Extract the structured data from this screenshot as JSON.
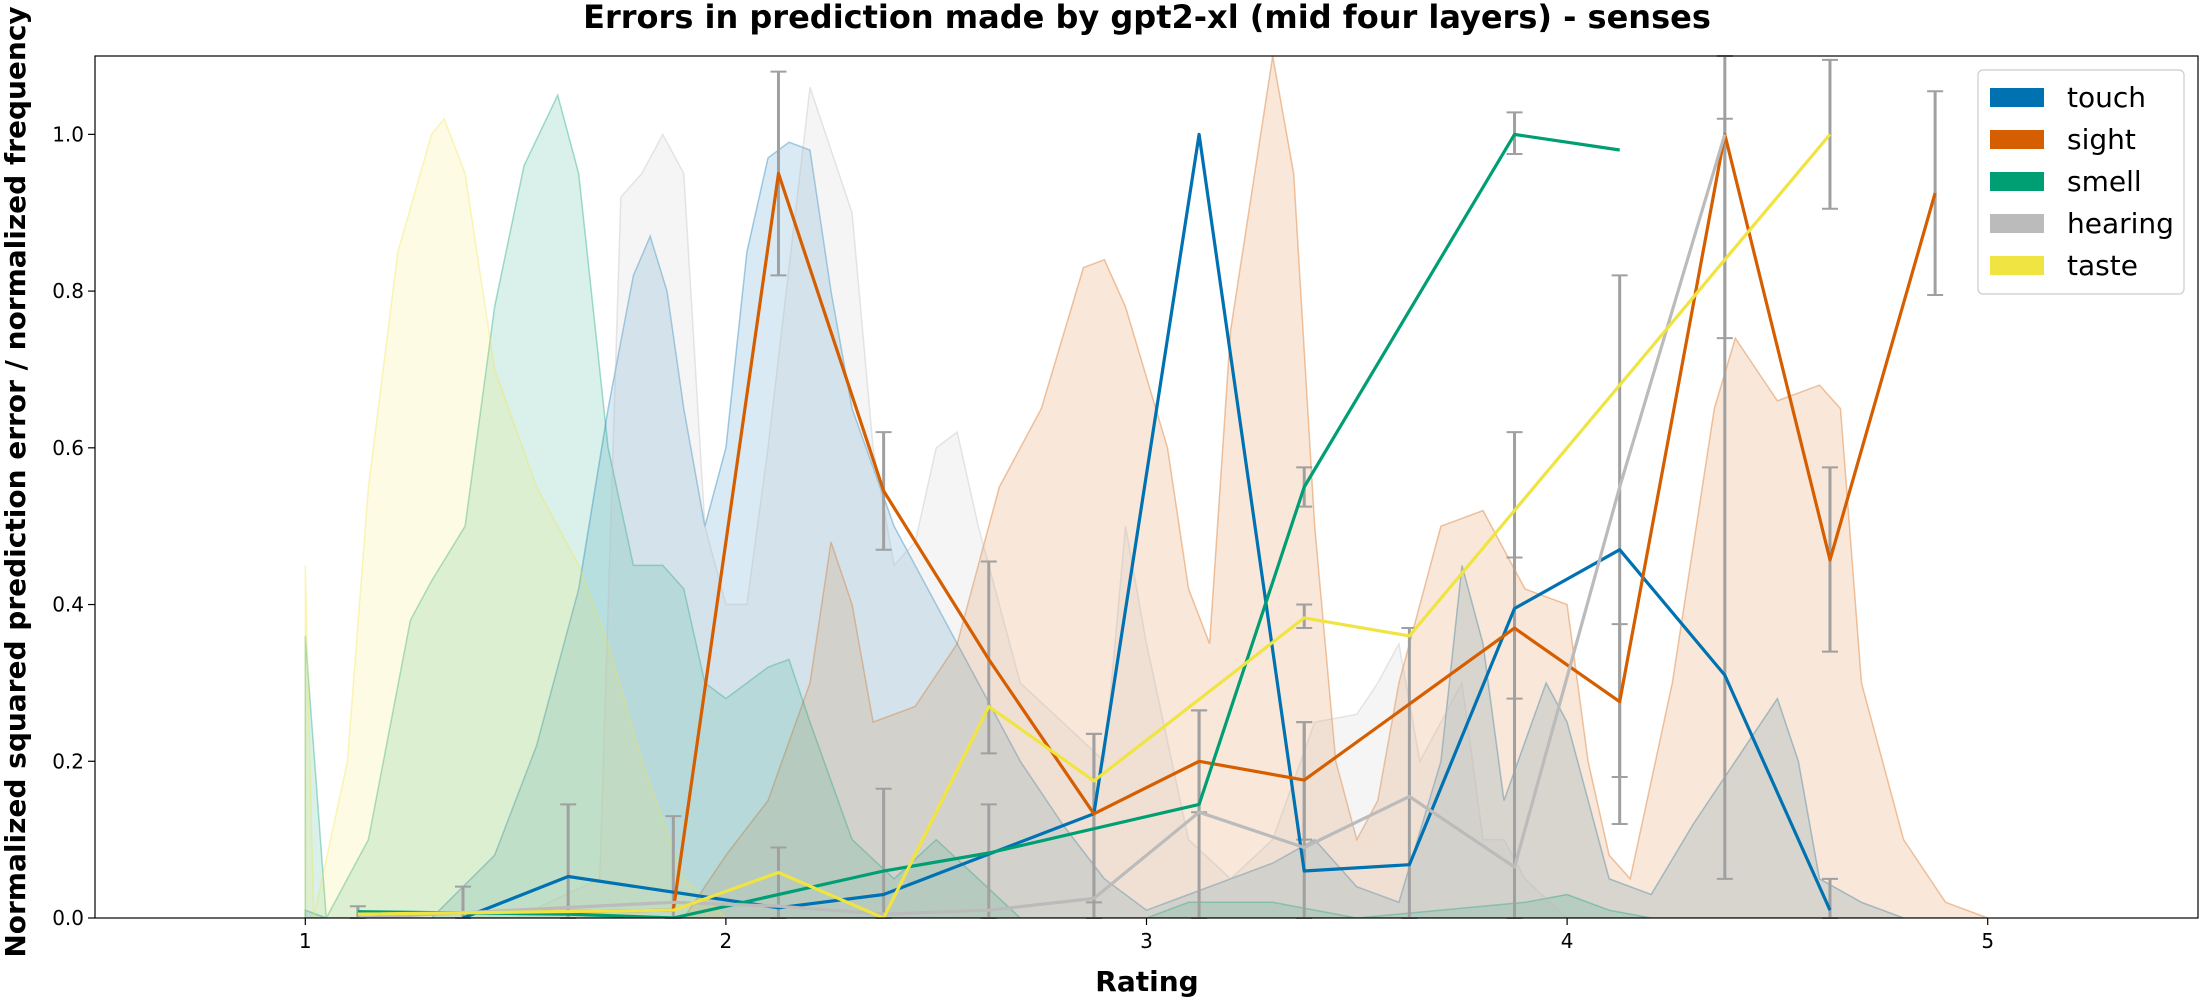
{
  "chart_data": {
    "type": "line",
    "title": "Errors in prediction made by gpt2-xl (mid four layers) - senses",
    "xlabel": "Rating",
    "ylabel": "Normalized squared prediction error / normalized frequency",
    "xlim": [
      0.5,
      5.5
    ],
    "ylim": [
      0,
      1.1
    ],
    "xticks": [
      1,
      2,
      3,
      4,
      5
    ],
    "yticks": [
      0.0,
      0.2,
      0.4,
      0.6,
      0.8,
      1.0
    ],
    "legend_position": "top-right",
    "grid": false,
    "series": [
      {
        "name": "touch",
        "color": "#0072B2",
        "line": [
          [
            1.375,
            0.0
          ],
          [
            1.625,
            0.053
          ],
          [
            2.125,
            0.013
          ],
          [
            2.375,
            0.03
          ],
          [
            2.875,
            0.133
          ],
          [
            3.125,
            1.0
          ],
          [
            3.375,
            0.06
          ],
          [
            3.625,
            0.068
          ],
          [
            3.875,
            0.395
          ],
          [
            4.125,
            0.47
          ],
          [
            4.375,
            0.31
          ],
          [
            4.625,
            0.01
          ]
        ],
        "errors": [],
        "density": [
          [
            1.0,
            0.01
          ],
          [
            1.05,
            0.0
          ],
          [
            1.3,
            0.0
          ],
          [
            1.45,
            0.08
          ],
          [
            1.55,
            0.22
          ],
          [
            1.65,
            0.42
          ],
          [
            1.72,
            0.65
          ],
          [
            1.78,
            0.82
          ],
          [
            1.82,
            0.87
          ],
          [
            1.86,
            0.8
          ],
          [
            1.9,
            0.65
          ],
          [
            1.95,
            0.5
          ],
          [
            2.0,
            0.6
          ],
          [
            2.05,
            0.85
          ],
          [
            2.1,
            0.97
          ],
          [
            2.15,
            0.99
          ],
          [
            2.2,
            0.98
          ],
          [
            2.25,
            0.8
          ],
          [
            2.3,
            0.65
          ],
          [
            2.4,
            0.5
          ],
          [
            2.5,
            0.4
          ],
          [
            2.6,
            0.3
          ],
          [
            2.7,
            0.2
          ],
          [
            2.8,
            0.12
          ],
          [
            2.9,
            0.05
          ],
          [
            3.0,
            0.01
          ],
          [
            3.1,
            0.03
          ],
          [
            3.2,
            0.05
          ],
          [
            3.3,
            0.07
          ],
          [
            3.4,
            0.1
          ],
          [
            3.5,
            0.04
          ],
          [
            3.6,
            0.02
          ],
          [
            3.7,
            0.2
          ],
          [
            3.75,
            0.45
          ],
          [
            3.8,
            0.35
          ],
          [
            3.85,
            0.15
          ],
          [
            3.95,
            0.3
          ],
          [
            4.0,
            0.25
          ],
          [
            4.1,
            0.05
          ],
          [
            4.2,
            0.03
          ],
          [
            4.3,
            0.12
          ],
          [
            4.4,
            0.2
          ],
          [
            4.5,
            0.28
          ],
          [
            4.55,
            0.2
          ],
          [
            4.6,
            0.05
          ],
          [
            4.7,
            0.02
          ],
          [
            4.8,
            0.0
          ]
        ]
      },
      {
        "name": "sight",
        "color": "#D55E00",
        "line": [
          [
            1.125,
            0.005
          ],
          [
            1.875,
            0.01
          ],
          [
            2.125,
            0.95
          ],
          [
            2.375,
            0.545
          ],
          [
            2.625,
            0.33
          ],
          [
            2.875,
            0.133
          ],
          [
            3.125,
            0.2
          ],
          [
            3.375,
            0.176
          ],
          [
            3.875,
            0.37
          ],
          [
            4.125,
            0.276
          ],
          [
            4.375,
            1.0
          ],
          [
            4.625,
            0.457
          ],
          [
            4.875,
            0.925
          ]
        ],
        "errors": [
          [
            2.125,
            0.82,
            1.08
          ],
          [
            2.375,
            0.47,
            0.62
          ],
          [
            2.625,
            0.21,
            0.455
          ],
          [
            2.875,
            0.02,
            0.235
          ],
          [
            3.125,
            0.135,
            0.265
          ],
          [
            3.375,
            0.1,
            0.25
          ],
          [
            3.875,
            0.28,
            0.46
          ],
          [
            4.125,
            0.18,
            0.375
          ],
          [
            4.375,
            0.74,
            1.02
          ],
          [
            4.625,
            0.34,
            0.575
          ],
          [
            4.875,
            0.795,
            1.055
          ]
        ],
        "density": [
          [
            1.9,
            0.0
          ],
          [
            2.0,
            0.08
          ],
          [
            2.1,
            0.15
          ],
          [
            2.2,
            0.3
          ],
          [
            2.25,
            0.48
          ],
          [
            2.3,
            0.4
          ],
          [
            2.35,
            0.25
          ],
          [
            2.45,
            0.27
          ],
          [
            2.55,
            0.35
          ],
          [
            2.65,
            0.55
          ],
          [
            2.75,
            0.65
          ],
          [
            2.85,
            0.83
          ],
          [
            2.9,
            0.84
          ],
          [
            2.95,
            0.78
          ],
          [
            3.05,
            0.6
          ],
          [
            3.1,
            0.42
          ],
          [
            3.15,
            0.35
          ],
          [
            3.2,
            0.75
          ],
          [
            3.3,
            1.1
          ],
          [
            3.35,
            0.95
          ],
          [
            3.4,
            0.5
          ],
          [
            3.45,
            0.2
          ],
          [
            3.5,
            0.1
          ],
          [
            3.55,
            0.15
          ],
          [
            3.6,
            0.3
          ],
          [
            3.7,
            0.5
          ],
          [
            3.8,
            0.52
          ],
          [
            3.9,
            0.42
          ],
          [
            4.0,
            0.4
          ],
          [
            4.05,
            0.2
          ],
          [
            4.1,
            0.08
          ],
          [
            4.15,
            0.05
          ],
          [
            4.25,
            0.3
          ],
          [
            4.35,
            0.65
          ],
          [
            4.4,
            0.74
          ],
          [
            4.5,
            0.66
          ],
          [
            4.6,
            0.68
          ],
          [
            4.65,
            0.65
          ],
          [
            4.7,
            0.3
          ],
          [
            4.8,
            0.1
          ],
          [
            4.9,
            0.02
          ],
          [
            5.0,
            0.0
          ]
        ]
      },
      {
        "name": "smell",
        "color": "#009E73",
        "line": [
          [
            1.125,
            0.008
          ],
          [
            1.625,
            0.005
          ],
          [
            1.875,
            0.0
          ],
          [
            2.375,
            0.06
          ],
          [
            2.625,
            0.083
          ],
          [
            3.125,
            0.145
          ],
          [
            3.375,
            0.55
          ],
          [
            3.875,
            1.0
          ],
          [
            4.125,
            0.98
          ]
        ],
        "errors": [
          [
            3.375,
            0.525,
            0.575
          ],
          [
            3.875,
            0.975,
            1.028
          ]
        ],
        "density": [
          [
            1.0,
            0.36
          ],
          [
            1.05,
            0.0
          ],
          [
            1.15,
            0.1
          ],
          [
            1.25,
            0.38
          ],
          [
            1.3,
            0.43
          ],
          [
            1.38,
            0.5
          ],
          [
            1.45,
            0.78
          ],
          [
            1.52,
            0.96
          ],
          [
            1.6,
            1.05
          ],
          [
            1.65,
            0.95
          ],
          [
            1.72,
            0.6
          ],
          [
            1.78,
            0.45
          ],
          [
            1.85,
            0.45
          ],
          [
            1.9,
            0.42
          ],
          [
            1.95,
            0.3
          ],
          [
            2.0,
            0.28
          ],
          [
            2.1,
            0.32
          ],
          [
            2.15,
            0.33
          ],
          [
            2.2,
            0.25
          ],
          [
            2.3,
            0.1
          ],
          [
            2.4,
            0.05
          ],
          [
            2.5,
            0.1
          ],
          [
            2.6,
            0.05
          ],
          [
            2.7,
            0.0
          ],
          [
            3.0,
            0.0
          ],
          [
            3.1,
            0.02
          ],
          [
            3.3,
            0.02
          ],
          [
            3.5,
            0.0
          ],
          [
            3.9,
            0.02
          ],
          [
            4.0,
            0.03
          ],
          [
            4.1,
            0.01
          ],
          [
            4.2,
            0.0
          ]
        ]
      },
      {
        "name": "hearing",
        "color": "#BBBBBB",
        "line": [
          [
            1.125,
            0.0
          ],
          [
            1.875,
            0.02
          ],
          [
            2.125,
            0.015
          ],
          [
            2.375,
            0.005
          ],
          [
            2.625,
            0.01
          ],
          [
            2.875,
            0.025
          ],
          [
            3.125,
            0.135
          ],
          [
            3.375,
            0.09
          ],
          [
            3.625,
            0.155
          ],
          [
            3.875,
            0.065
          ],
          [
            4.125,
            0.55
          ],
          [
            4.375,
            1.0
          ]
        ],
        "errors": [
          [
            1.125,
            0.0,
            0.015
          ],
          [
            1.375,
            0.0,
            0.04
          ],
          [
            1.625,
            0.0,
            0.145
          ],
          [
            1.875,
            0.0,
            0.13
          ],
          [
            2.125,
            0.0,
            0.09
          ],
          [
            2.375,
            0.0,
            0.165
          ],
          [
            2.625,
            0.0,
            0.145
          ],
          [
            2.875,
            0.0,
            0.235
          ],
          [
            3.125,
            0.0,
            0.265
          ],
          [
            3.375,
            0.0,
            0.25
          ],
          [
            3.625,
            0.0,
            0.37
          ],
          [
            3.875,
            0.0,
            0.62
          ],
          [
            4.125,
            0.12,
            0.82
          ],
          [
            4.375,
            0.05,
            1.1
          ],
          [
            4.625,
            0.0,
            0.05
          ]
        ],
        "density": [
          [
            1.5,
            0.0
          ],
          [
            1.7,
            0.05
          ],
          [
            1.75,
            0.92
          ],
          [
            1.8,
            0.95
          ],
          [
            1.85,
            1.0
          ],
          [
            1.9,
            0.95
          ],
          [
            1.95,
            0.5
          ],
          [
            2.0,
            0.4
          ],
          [
            2.05,
            0.4
          ],
          [
            2.1,
            0.6
          ],
          [
            2.2,
            1.06
          ],
          [
            2.3,
            0.9
          ],
          [
            2.35,
            0.6
          ],
          [
            2.4,
            0.45
          ],
          [
            2.45,
            0.48
          ],
          [
            2.5,
            0.6
          ],
          [
            2.55,
            0.62
          ],
          [
            2.6,
            0.5
          ],
          [
            2.7,
            0.3
          ],
          [
            2.8,
            0.25
          ],
          [
            2.9,
            0.2
          ],
          [
            2.95,
            0.5
          ],
          [
            3.0,
            0.35
          ],
          [
            3.1,
            0.1
          ],
          [
            3.2,
            0.05
          ],
          [
            3.3,
            0.1
          ],
          [
            3.4,
            0.25
          ],
          [
            3.5,
            0.26
          ],
          [
            3.55,
            0.3
          ],
          [
            3.6,
            0.35
          ],
          [
            3.65,
            0.2
          ],
          [
            3.75,
            0.3
          ],
          [
            3.8,
            0.1
          ],
          [
            3.85,
            0.1
          ],
          [
            3.9,
            0.05
          ],
          [
            4.0,
            0.0
          ]
        ]
      },
      {
        "name": "taste",
        "color": "#F0E442",
        "line": [
          [
            1.125,
            0.005
          ],
          [
            1.875,
            0.01
          ],
          [
            2.125,
            0.058
          ],
          [
            2.375,
            0.0
          ],
          [
            2.625,
            0.27
          ],
          [
            2.875,
            0.175
          ],
          [
            3.375,
            0.383
          ],
          [
            3.625,
            0.36
          ],
          [
            3.875,
            0.52
          ],
          [
            4.125,
            0.68
          ],
          [
            4.375,
            0.84
          ],
          [
            4.625,
            1.0
          ]
        ],
        "errors": [
          [
            3.375,
            0.37,
            0.4
          ],
          [
            4.625,
            0.905,
            1.095
          ]
        ],
        "density": [
          [
            1.0,
            0.45
          ],
          [
            1.02,
            0.0
          ],
          [
            1.1,
            0.2
          ],
          [
            1.15,
            0.55
          ],
          [
            1.22,
            0.85
          ],
          [
            1.3,
            1.0
          ],
          [
            1.33,
            1.02
          ],
          [
            1.38,
            0.95
          ],
          [
            1.45,
            0.7
          ],
          [
            1.55,
            0.55
          ],
          [
            1.65,
            0.45
          ],
          [
            1.72,
            0.35
          ],
          [
            1.8,
            0.2
          ],
          [
            1.9,
            0.05
          ],
          [
            2.0,
            0.0
          ]
        ]
      }
    ]
  }
}
